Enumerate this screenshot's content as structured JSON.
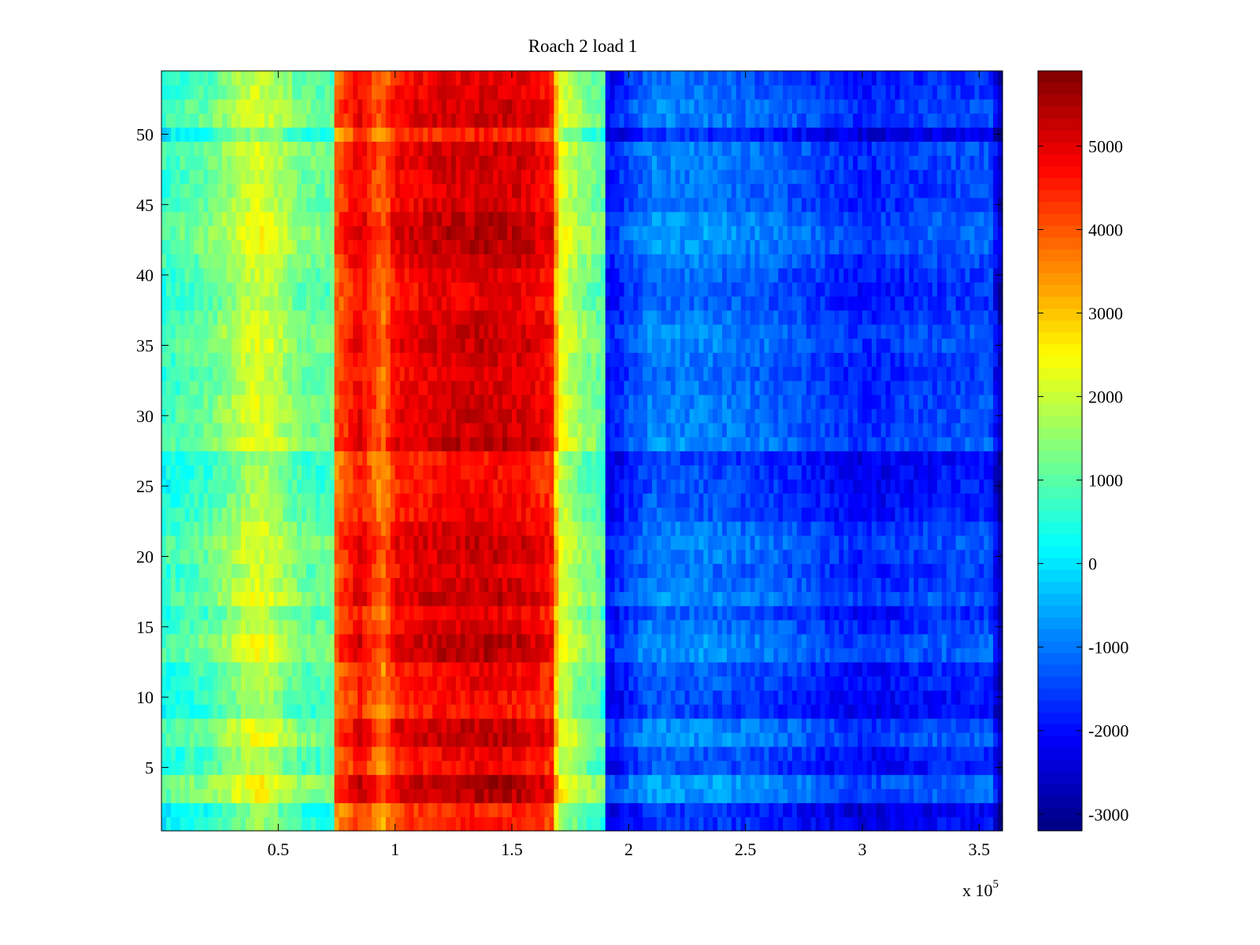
{
  "chart_data": {
    "type": "heatmap",
    "title": "Roach 2 load 1",
    "x_multiplier_label": {
      "base": "x 10",
      "exponent": "5"
    },
    "xlim": [
      0,
      3.6
    ],
    "ylim": [
      0.5,
      54.5
    ],
    "x_ticks": [
      0.5,
      1,
      1.5,
      2,
      2.5,
      3,
      3.5
    ],
    "x_tick_labels": [
      "0.5",
      "1",
      "1.5",
      "2",
      "2.5",
      "3",
      "3.5"
    ],
    "y_ticks": [
      5,
      10,
      15,
      20,
      25,
      30,
      35,
      40,
      45,
      50
    ],
    "y_tick_labels": [
      "5",
      "10",
      "15",
      "20",
      "25",
      "30",
      "35",
      "40",
      "45",
      "50"
    ],
    "rows": 54,
    "colorbar": {
      "colormap": "jet",
      "clim": [
        -3200,
        5900
      ],
      "ticks": [
        -3000,
        -2000,
        -1000,
        0,
        1000,
        2000,
        3000,
        4000,
        5000
      ],
      "tick_labels": [
        "-3000",
        "-2000",
        "-1000",
        "0",
        "1000",
        "2000",
        "3000",
        "4000",
        "5000"
      ]
    },
    "column_profile": {
      "x": [
        0.0,
        0.2,
        0.4,
        0.47,
        0.6,
        0.74,
        0.75,
        0.85,
        0.95,
        1.0,
        1.2,
        1.4,
        1.55,
        1.67,
        1.7,
        1.8,
        1.89,
        1.9,
        2.1,
        2.4,
        2.7,
        3.0,
        3.3,
        3.55,
        3.6
      ],
      "values": [
        500,
        900,
        2000,
        1800,
        1000,
        900,
        3800,
        4700,
        3600,
        4600,
        4900,
        5000,
        4900,
        4500,
        2200,
        1300,
        900,
        -2200,
        -1100,
        -1200,
        -1500,
        -2000,
        -1700,
        -1600,
        -3100
      ]
    },
    "row_modulation": [
      -500,
      -600,
      600,
      700,
      -200,
      -100,
      500,
      400,
      -400,
      -300,
      -100,
      -100,
      500,
      500,
      200,
      -100,
      500,
      300,
      100,
      300,
      400,
      200,
      -100,
      -200,
      -300,
      -300,
      -400,
      500,
      300,
      300,
      300,
      200,
      100,
      200,
      400,
      400,
      200,
      0,
      0,
      100,
      300,
      500,
      600,
      500,
      200,
      200,
      200,
      300,
      300,
      -600,
      300,
      300,
      100,
      0
    ]
  }
}
